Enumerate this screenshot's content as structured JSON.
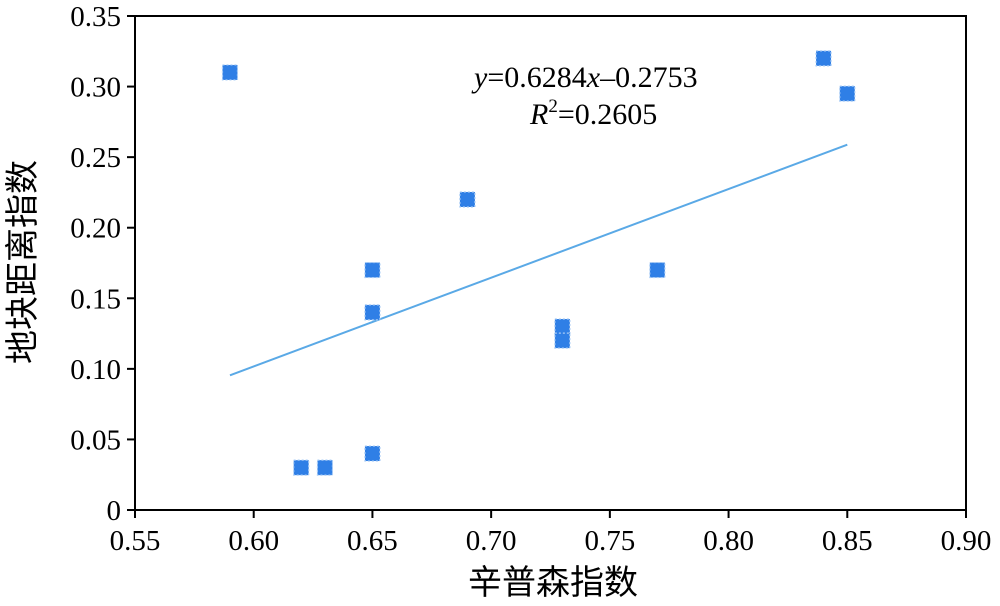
{
  "chart_data": {
    "type": "scatter",
    "xlabel": "辛普森指数",
    "ylabel": "地块距离指数",
    "xlim": [
      0.55,
      0.9
    ],
    "ylim": [
      0,
      0.35
    ],
    "xticks": [
      "0.55",
      "0.60",
      "0.65",
      "0.70",
      "0.75",
      "0.80",
      "0.85",
      "0.90"
    ],
    "yticks": [
      "0",
      "0.05",
      "0.10",
      "0.15",
      "0.20",
      "0.25",
      "0.30",
      "0.35"
    ],
    "grid": false,
    "marker": "square",
    "marker_color": "#2f7fe6",
    "points": [
      {
        "x": 0.59,
        "y": 0.31
      },
      {
        "x": 0.62,
        "y": 0.03
      },
      {
        "x": 0.63,
        "y": 0.03
      },
      {
        "x": 0.65,
        "y": 0.17
      },
      {
        "x": 0.65,
        "y": 0.14
      },
      {
        "x": 0.65,
        "y": 0.04
      },
      {
        "x": 0.69,
        "y": 0.22
      },
      {
        "x": 0.73,
        "y": 0.13
      },
      {
        "x": 0.73,
        "y": 0.12
      },
      {
        "x": 0.77,
        "y": 0.17
      },
      {
        "x": 0.84,
        "y": 0.32
      },
      {
        "x": 0.85,
        "y": 0.295
      }
    ],
    "trendline": {
      "slope": 0.6284,
      "intercept": -0.2753,
      "x_range": [
        0.59,
        0.85
      ],
      "color": "#5aa9e6"
    },
    "equation": {
      "y_var": "y",
      "eq_mid": "=0.6284",
      "x_var": "x",
      "eq_tail": "–0.2753",
      "r_var": "R",
      "r_sup": "2",
      "r_val": "=0.2605"
    }
  }
}
